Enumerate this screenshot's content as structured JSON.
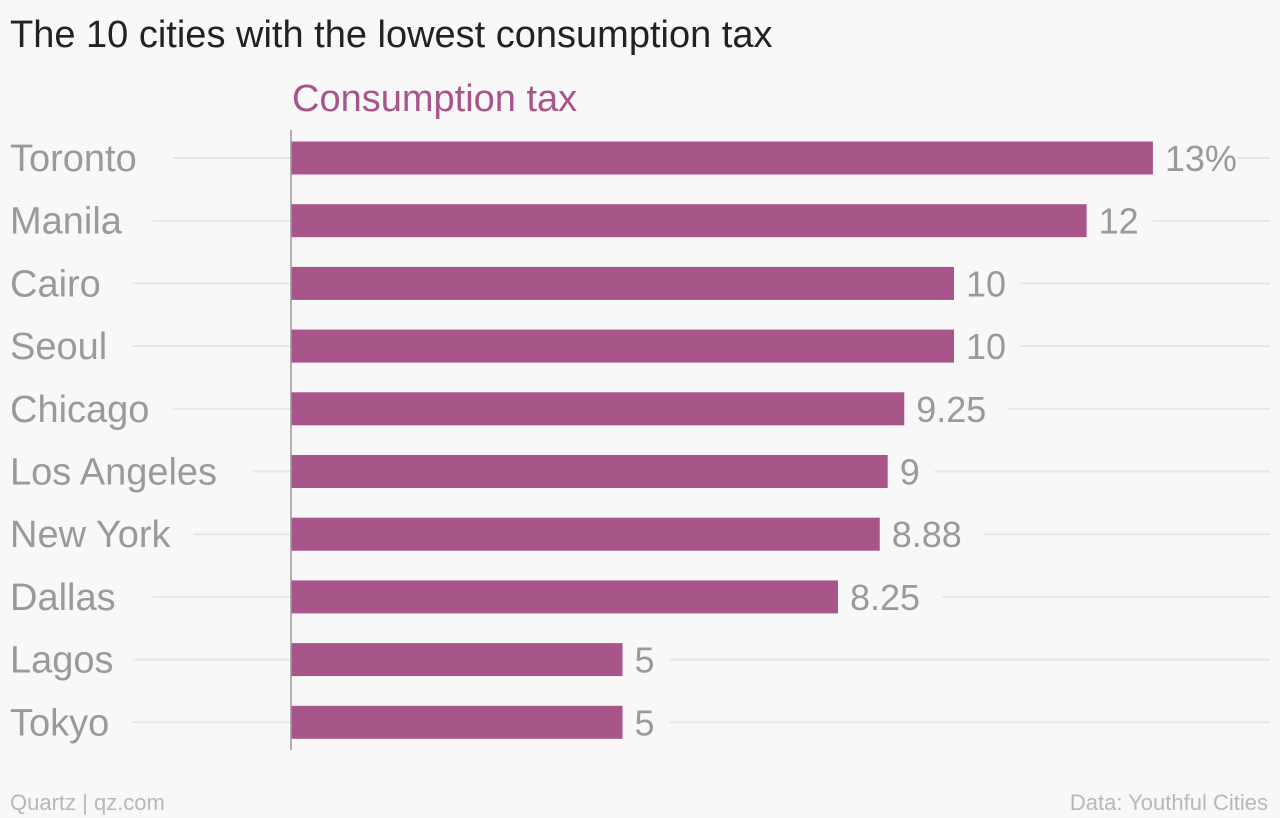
{
  "title": "The 10 cities with the lowest consumption tax",
  "footer": {
    "source_left": "Quartz | qz.com",
    "source_right": "Data: Youthful Cities"
  },
  "colors": {
    "bar": "#a8558a",
    "label": "#9a9a9a",
    "grid": "#e6e6e6",
    "axis": "#999999",
    "background": "#f8f8f8"
  },
  "chart_data": {
    "type": "bar",
    "orientation": "horizontal",
    "title": "The 10 cities with the lowest consumption tax",
    "series": [
      {
        "name": "Consumption tax",
        "values": [
          13,
          12,
          10,
          10,
          9.25,
          9,
          8.88,
          8.25,
          5,
          5
        ],
        "value_labels": [
          "13%",
          "12",
          "10",
          "10",
          "9.25",
          "9",
          "8.88",
          "8.25",
          "5",
          "5"
        ]
      }
    ],
    "categories": [
      "Toronto",
      "Manila",
      "Cairo",
      "Seoul",
      "Chicago",
      "Los Angeles",
      "New York",
      "Dallas",
      "Lagos",
      "Tokyo"
    ],
    "xlim": [
      0,
      13
    ],
    "grid": true
  }
}
